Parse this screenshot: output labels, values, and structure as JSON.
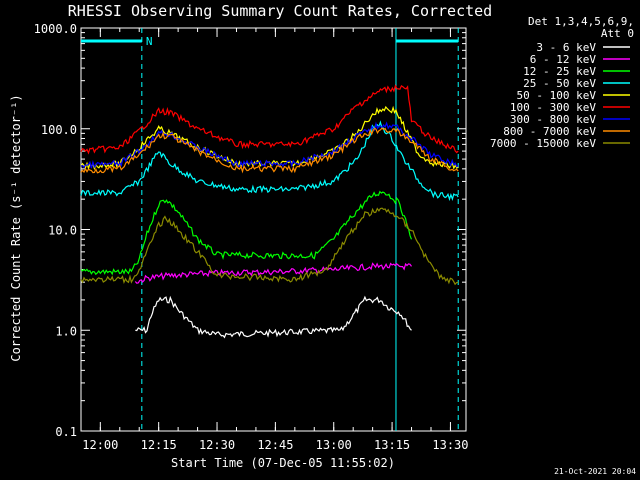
{
  "chart_data": {
    "type": "line",
    "title": "RHESSI Observing Summary Count Rates, Corrected",
    "xlabel": "Start Time (07-Dec-05 11:55:02)",
    "ylabel": "Corrected Count Rate (s⁻¹ detector⁻¹)",
    "x_ticks": [
      "12:00",
      "12:15",
      "12:30",
      "12:45",
      "13:00",
      "13:15",
      "13:30"
    ],
    "y_ticks": [
      "0.1",
      "1.0",
      "10.0",
      "100.0",
      "1000.0"
    ],
    "ylim": [
      0.1,
      1000
    ],
    "y_scale": "log",
    "xlim": [
      "11:55:02",
      "13:34:00"
    ],
    "legend_header": [
      "Det 1,3,4,5,6,9,",
      "Att 0"
    ],
    "legend_position": "right",
    "timestamp": "21-Oct-2021 20:04",
    "night_marker_label": "N",
    "night_periods": [
      {
        "start": "11:55:02",
        "end": "12:10:40"
      },
      {
        "start": "13:16:00",
        "end": "13:32:00"
      }
    ],
    "vertical_lines_solid": [
      "13:16:00"
    ],
    "vertical_lines_dashed": [
      "12:10:40",
      "13:32:00"
    ],
    "series": [
      {
        "name": "3 - 6 keV",
        "color": "#ffffff",
        "points": [
          [
            "12:09:00",
            1.0
          ],
          [
            "12:12:00",
            1.0
          ],
          [
            "12:13:00",
            1.4
          ],
          [
            "12:15:00",
            2.0
          ],
          [
            "12:18:00",
            2.0
          ],
          [
            "12:20:00",
            1.6
          ],
          [
            "12:25:00",
            1.0
          ],
          [
            "12:30:00",
            0.9
          ],
          [
            "13:02:00",
            1.0
          ],
          [
            "13:05:00",
            1.4
          ],
          [
            "13:08:00",
            2.0
          ],
          [
            "13:12:00",
            2.0
          ],
          [
            "13:14:00",
            1.7
          ],
          [
            "13:17:00",
            1.5
          ],
          [
            "13:20:00",
            1.0
          ]
        ]
      },
      {
        "name": "6 - 12 keV",
        "color": "#ff00ff",
        "points": [
          [
            "12:09:00",
            3.0
          ],
          [
            "12:12:00",
            3.3
          ],
          [
            "12:18:00",
            3.5
          ],
          [
            "12:30:00",
            3.7
          ],
          [
            "12:45:00",
            3.8
          ],
          [
            "13:00:00",
            4.0
          ],
          [
            "13:10:00",
            4.3
          ],
          [
            "13:15:00",
            4.3
          ],
          [
            "13:20:00",
            4.3
          ]
        ]
      },
      {
        "name": "12 - 25 keV",
        "color": "#00ff00",
        "points": [
          [
            "11:55:02",
            3.8
          ],
          [
            "12:08:00",
            3.8
          ],
          [
            "12:10:00",
            5.0
          ],
          [
            "12:12:00",
            9.0
          ],
          [
            "12:15:00",
            18.0
          ],
          [
            "12:17:00",
            20.0
          ],
          [
            "12:20:00",
            15.0
          ],
          [
            "12:25:00",
            8.0
          ],
          [
            "12:30:00",
            5.6
          ],
          [
            "12:45:00",
            5.5
          ],
          [
            "12:55:00",
            5.5
          ],
          [
            "13:00:00",
            8.0
          ],
          [
            "13:05:00",
            14.0
          ],
          [
            "13:10:00",
            22.0
          ],
          [
            "13:13:00",
            24.0
          ],
          [
            "13:17:00",
            18.0
          ],
          [
            "13:20:00",
            8.0
          ]
        ]
      },
      {
        "name": "25 - 50 keV",
        "color": "#00ffff",
        "points": [
          [
            "11:55:02",
            23.0
          ],
          [
            "12:05:00",
            23.0
          ],
          [
            "12:10:00",
            30.0
          ],
          [
            "12:13:00",
            45.0
          ],
          [
            "12:15:00",
            60.0
          ],
          [
            "12:18:00",
            45.0
          ],
          [
            "12:25:00",
            30.0
          ],
          [
            "12:35:00",
            25.0
          ],
          [
            "12:50:00",
            25.0
          ],
          [
            "13:00:00",
            30.0
          ],
          [
            "13:06:00",
            50.0
          ],
          [
            "13:10:00",
            100.0
          ],
          [
            "13:12:00",
            110.0
          ],
          [
            "13:15:00",
            80.0
          ],
          [
            "13:18:00",
            50.0
          ],
          [
            "13:22:00",
            30.0
          ],
          [
            "13:26:00",
            22.0
          ],
          [
            "13:32:00",
            21.0
          ]
        ]
      },
      {
        "name": "50 - 100 keV",
        "color": "#ffff00",
        "points": [
          [
            "11:55:02",
            42.0
          ],
          [
            "12:05:00",
            45.0
          ],
          [
            "12:10:00",
            65.0
          ],
          [
            "12:15:00",
            100.0
          ],
          [
            "12:18:00",
            90.0
          ],
          [
            "12:25:00",
            65.0
          ],
          [
            "12:35:00",
            45.0
          ],
          [
            "12:50:00",
            45.0
          ],
          [
            "13:00:00",
            60.0
          ],
          [
            "13:06:00",
            90.0
          ],
          [
            "13:10:00",
            140.0
          ],
          [
            "13:13:00",
            160.0
          ],
          [
            "13:16:00",
            150.0
          ],
          [
            "13:19:00",
            90.0
          ],
          [
            "13:22:00",
            55.0
          ],
          [
            "13:26:00",
            45.0
          ],
          [
            "13:32:00",
            42.0
          ]
        ]
      },
      {
        "name": "100 - 300 keV",
        "color": "#ff0000",
        "points": [
          [
            "11:55:02",
            60.0
          ],
          [
            "12:05:00",
            65.0
          ],
          [
            "12:10:00",
            95.0
          ],
          [
            "12:15:00",
            150.0
          ],
          [
            "12:18:00",
            145.0
          ],
          [
            "12:25:00",
            100.0
          ],
          [
            "12:35:00",
            70.0
          ],
          [
            "12:50:00",
            70.0
          ],
          [
            "13:00:00",
            100.0
          ],
          [
            "13:06:00",
            170.0
          ],
          [
            "13:12:00",
            240.0
          ],
          [
            "13:17:00",
            260.0
          ],
          [
            "13:19:00",
            250.0
          ],
          [
            "13:20:00",
            120.0
          ],
          [
            "13:25:00",
            80.0
          ],
          [
            "13:32:00",
            60.0
          ]
        ]
      },
      {
        "name": "300 - 800 keV",
        "color": "#0000ff",
        "points": [
          [
            "11:55:02",
            43.0
          ],
          [
            "12:05:00",
            45.0
          ],
          [
            "12:10:00",
            60.0
          ],
          [
            "12:15:00",
            90.0
          ],
          [
            "12:18:00",
            88.0
          ],
          [
            "12:25:00",
            65.0
          ],
          [
            "12:35:00",
            45.0
          ],
          [
            "12:50:00",
            45.0
          ],
          [
            "13:00:00",
            60.0
          ],
          [
            "13:06:00",
            85.0
          ],
          [
            "13:12:00",
            110.0
          ],
          [
            "13:16:00",
            105.0
          ],
          [
            "13:20:00",
            80.0
          ],
          [
            "13:25:00",
            55.0
          ],
          [
            "13:32:00",
            43.0
          ]
        ]
      },
      {
        "name": "800 - 7000 keV",
        "color": "#ff8c00",
        "points": [
          [
            "11:55:02",
            38.0
          ],
          [
            "12:05:00",
            40.0
          ],
          [
            "12:10:00",
            55.0
          ],
          [
            "12:15:00",
            85.0
          ],
          [
            "12:18:00",
            85.0
          ],
          [
            "12:25:00",
            60.0
          ],
          [
            "12:35:00",
            40.0
          ],
          [
            "12:50:00",
            40.0
          ],
          [
            "13:00:00",
            55.0
          ],
          [
            "13:06:00",
            80.0
          ],
          [
            "13:12:00",
            100.0
          ],
          [
            "13:16:00",
            95.0
          ],
          [
            "13:20:00",
            75.0
          ],
          [
            "13:25:00",
            50.0
          ],
          [
            "13:32:00",
            38.0
          ]
        ]
      },
      {
        "name": "7000 - 15000 keV",
        "color": "#8b8b00",
        "points": [
          [
            "11:55:02",
            3.2
          ],
          [
            "12:08:00",
            3.2
          ],
          [
            "12:10:00",
            4.0
          ],
          [
            "12:12:00",
            6.0
          ],
          [
            "12:15:00",
            11.0
          ],
          [
            "12:17:00",
            13.0
          ],
          [
            "12:20:00",
            10.0
          ],
          [
            "12:25:00",
            6.0
          ],
          [
            "12:30:00",
            3.5
          ],
          [
            "12:50:00",
            3.2
          ],
          [
            "12:58:00",
            4.0
          ],
          [
            "13:03:00",
            8.0
          ],
          [
            "13:08:00",
            14.0
          ],
          [
            "13:12:00",
            16.0
          ],
          [
            "13:16:00",
            14.0
          ],
          [
            "13:20:00",
            10.0
          ],
          [
            "13:24:00",
            5.0
          ],
          [
            "13:28:00",
            3.2
          ],
          [
            "13:32:00",
            3.0
          ]
        ]
      }
    ]
  }
}
